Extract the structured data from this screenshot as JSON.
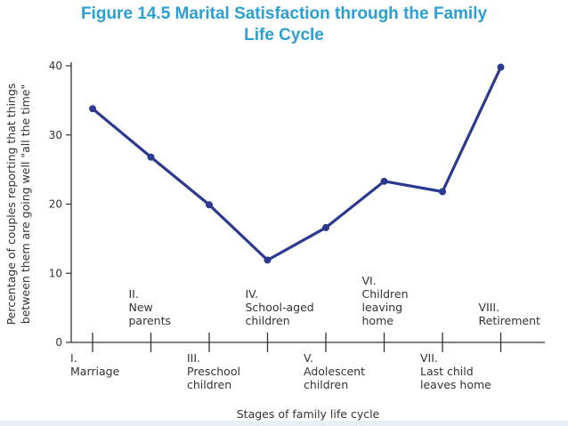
{
  "title": {
    "line1": "Figure 14.5 Marital Satisfaction through the Family",
    "line2": "Life Cycle"
  },
  "colors": {
    "title": "#2a9fd6",
    "series": "#2b3990",
    "axis": "#333333"
  },
  "chart_data": {
    "type": "line",
    "title": "Figure 14.5 Marital Satisfaction through the Family Life Cycle",
    "xlabel": "Stages of family life cycle",
    "ylabel_line1": "Percentage of couples reporting that things",
    "ylabel_line2": "between them are going well \"all the time\"",
    "ylim": [
      0,
      40
    ],
    "yticks": [
      "0",
      "10",
      "20",
      "30",
      "40"
    ],
    "grid": false,
    "categories": [
      "I. Marriage",
      "II. New parents",
      "III. Preschool children",
      "IV. School-aged children",
      "V. Adolescent children",
      "VI. Children leaving home",
      "VII. Last child leaves home",
      "VIII. Retirement"
    ],
    "stage_labels": [
      {
        "lines": [
          "I.",
          "Marriage"
        ],
        "pos": "below"
      },
      {
        "lines": [
          "II.",
          "New",
          "parents"
        ],
        "pos": "above"
      },
      {
        "lines": [
          "III.",
          "Preschool",
          "children"
        ],
        "pos": "below"
      },
      {
        "lines": [
          "IV.",
          "School-aged",
          "children"
        ],
        "pos": "above"
      },
      {
        "lines": [
          "V.",
          "Adolescent",
          "children"
        ],
        "pos": "below"
      },
      {
        "lines": [
          "VI.",
          "Children",
          "leaving",
          "home"
        ],
        "pos": "above"
      },
      {
        "lines": [
          "VII.",
          "Last child",
          "leaves home"
        ],
        "pos": "below"
      },
      {
        "lines": [
          "VIII.",
          "Retirement"
        ],
        "pos": "above"
      }
    ],
    "series": [
      {
        "values": [
          33.8,
          26.8,
          19.9,
          11.9,
          16.6,
          23.3,
          21.8,
          39.8
        ]
      }
    ]
  }
}
